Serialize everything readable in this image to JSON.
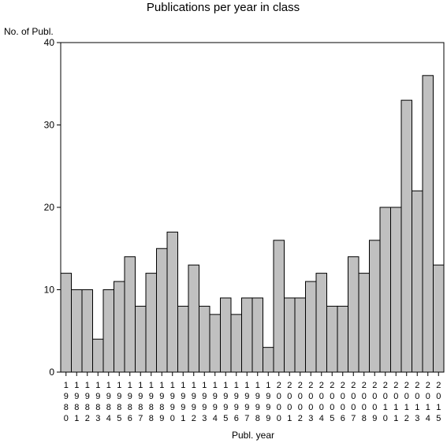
{
  "chart_data": {
    "type": "bar",
    "title": "Publications per year in class",
    "ylabel": "No. of Publ.",
    "xlabel": "Publ. year",
    "ylim": [
      0,
      40
    ],
    "yticks": [
      0,
      10,
      20,
      30,
      40
    ],
    "categories": [
      "1980",
      "1981",
      "1982",
      "1983",
      "1984",
      "1985",
      "1986",
      "1987",
      "1988",
      "1989",
      "1990",
      "1991",
      "1992",
      "1993",
      "1994",
      "1995",
      "1996",
      "1997",
      "1998",
      "1999",
      "2000",
      "2001",
      "2002",
      "2003",
      "2004",
      "2005",
      "2006",
      "2007",
      "2008",
      "2009",
      "2010",
      "2011",
      "2012",
      "2013",
      "2014",
      "2015"
    ],
    "values": [
      12,
      10,
      10,
      4,
      10,
      11,
      14,
      8,
      12,
      15,
      17,
      8,
      13,
      8,
      7,
      9,
      7,
      9,
      9,
      3,
      16,
      9,
      9,
      11,
      12,
      8,
      8,
      14,
      12,
      16,
      20,
      20,
      33,
      22,
      36,
      13
    ],
    "bar_color": "#c0c0c0",
    "grid": false,
    "legend": "none"
  }
}
